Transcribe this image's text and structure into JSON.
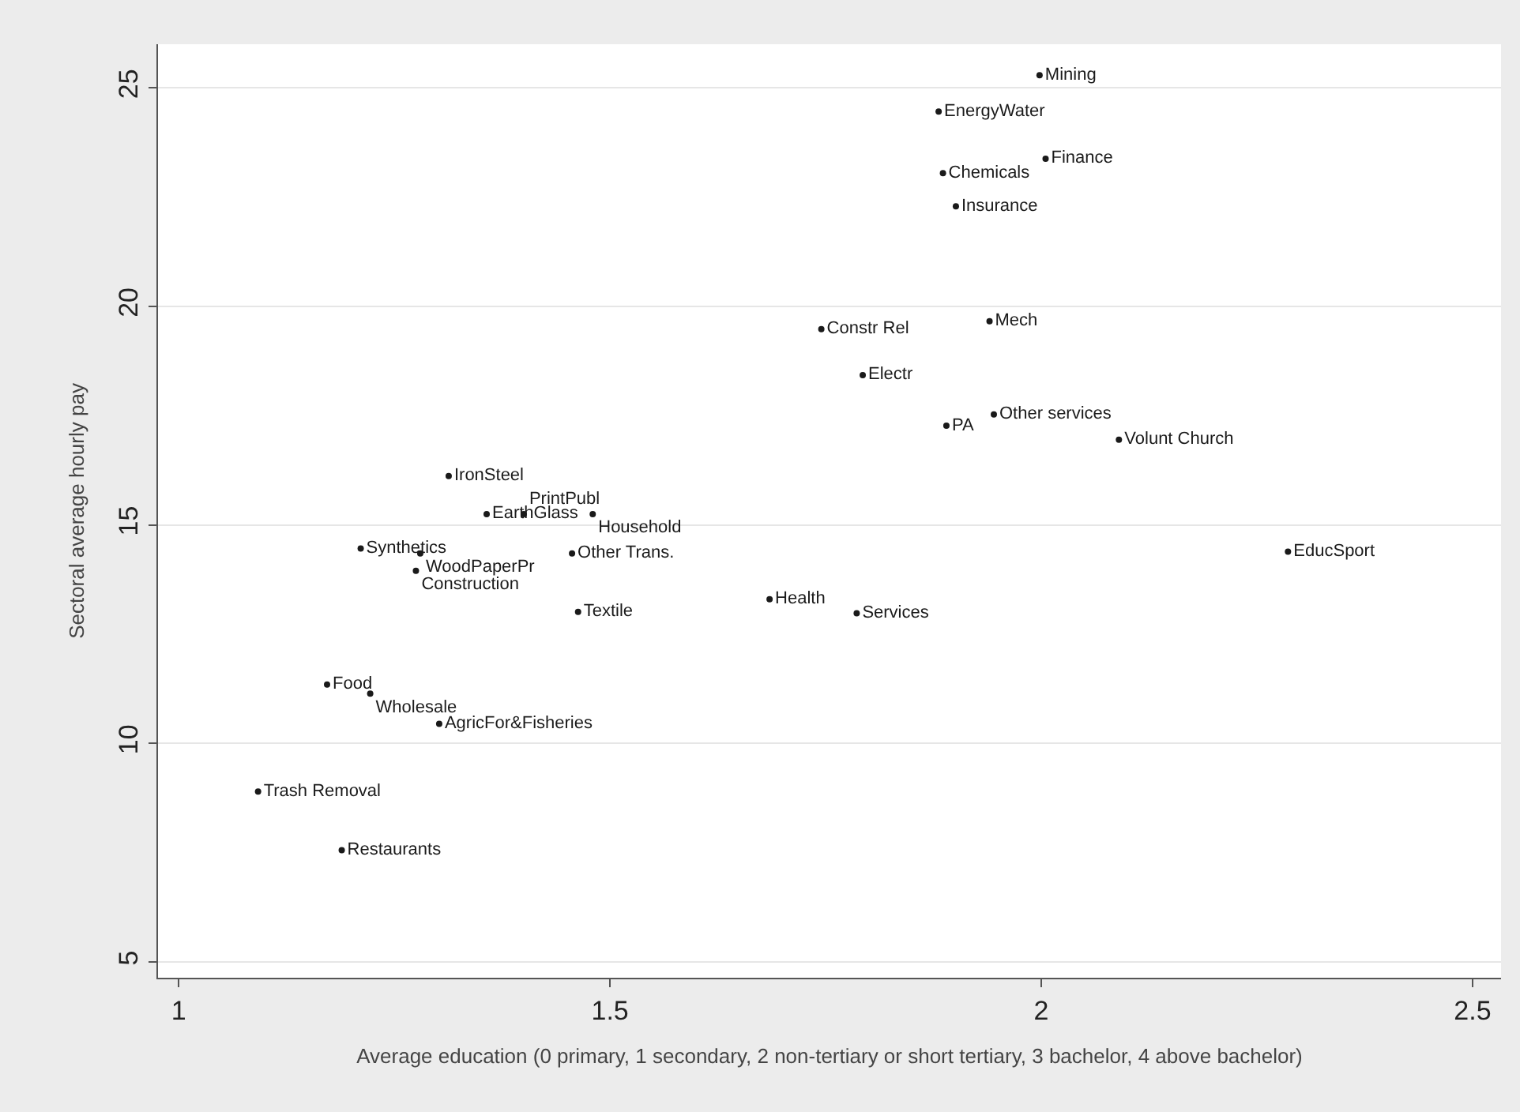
{
  "chart_data": {
    "type": "scatter",
    "xlabel": "Average education (0 primary, 1 secondary, 2 non-tertiary or short tertiary, 3 bachelor, 4 above bachelor)",
    "ylabel": "Sectoral average hourly pay",
    "xlim": [
      0.976,
      2.533
    ],
    "ylim": [
      4.64,
      26.0
    ],
    "xticks": [
      1,
      1.5,
      2,
      2.5
    ],
    "yticks": [
      5,
      10,
      15,
      20,
      25
    ],
    "grid": "y",
    "marker": "circle",
    "series": [
      {
        "color": "#1a1a1a",
        "x": [
          1.998,
          1.881,
          2.005,
          1.886,
          1.901,
          1.745,
          1.94,
          1.793,
          1.89,
          1.945,
          2.09,
          2.286,
          1.313,
          1.357,
          1.4,
          1.48,
          1.211,
          1.28,
          1.456,
          1.275,
          1.463,
          1.685,
          1.786,
          1.172,
          1.222,
          1.302,
          1.092,
          1.189
        ],
        "values": [
          25.29,
          24.46,
          23.38,
          23.05,
          22.29,
          19.48,
          19.66,
          18.43,
          17.27,
          17.53,
          16.95,
          14.39,
          16.12,
          15.25,
          15.25,
          15.25,
          14.46,
          14.35,
          14.35,
          13.95,
          13.01,
          13.3,
          12.98,
          11.35,
          11.14,
          10.45,
          8.9,
          7.56
        ],
        "value_labels": [
          "Mining",
          "EnergyWater",
          "Finance",
          "Chemicals",
          "Insurance",
          "Constr Rel",
          "Mech",
          "Electr",
          "PA",
          "Other services",
          "Volunt Church",
          "EducSport",
          "IronSteel",
          "EarthGlass",
          "PrintPubl",
          "Household",
          "Synthetics",
          "WoodPaperPr",
          "Other Trans.",
          "Construction",
          "Textile",
          "Health",
          "Services",
          "Food",
          "Wholesale",
          "AgricFor&Fisheries",
          "Trash Removal",
          "Restaurants"
        ]
      }
    ]
  }
}
